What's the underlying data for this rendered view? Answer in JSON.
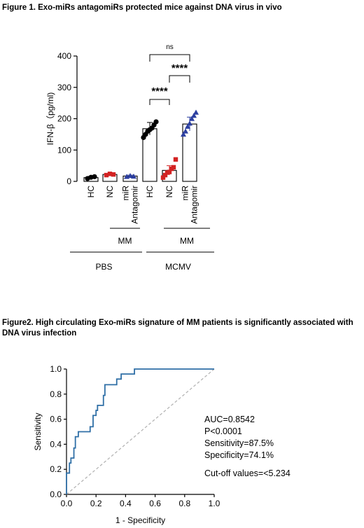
{
  "figure1": {
    "title": "Figure 1. Exo-miRs antagomiRs protected mice against DNA virus in vivo",
    "chart_data": {
      "type": "bar",
      "ylabel": "IFN-β（pg/ml)",
      "ylim": [
        0,
        400
      ],
      "yticks": [
        0,
        100,
        200,
        300,
        400
      ],
      "categories": [
        "HC",
        "NC",
        "miR Antagomir",
        "HC",
        "NC",
        "miR Antagomir"
      ],
      "category_lines": [
        [
          "HC"
        ],
        [
          "NC"
        ],
        [
          "miR",
          "Antagomir"
        ],
        [
          "HC"
        ],
        [
          "NC"
        ],
        [
          "miR",
          "Antagomir"
        ]
      ],
      "values": [
        12,
        22,
        17,
        168,
        35,
        183
      ],
      "errors": [
        4,
        3,
        3,
        20,
        15,
        22
      ],
      "colors": [
        "#000000",
        "#d32222",
        "#2c3fa0",
        "#000000",
        "#d32222",
        "#2c3fa0"
      ],
      "markers": [
        "circle",
        "square",
        "triangle",
        "circle",
        "square",
        "triangle"
      ],
      "points": [
        [
          9,
          13,
          15
        ],
        [
          20,
          24,
          22
        ],
        [
          15,
          18,
          16
        ],
        [
          140,
          150,
          160,
          165,
          170,
          180,
          190
        ],
        [
          12,
          20,
          28,
          30,
          40,
          45,
          70
        ],
        [
          150,
          160,
          175,
          185,
          200,
          210,
          220
        ]
      ],
      "group_labels": [
        {
          "label": "MM",
          "span": [
            1,
            2
          ]
        },
        {
          "label": "MM",
          "span": [
            4,
            5
          ]
        },
        {
          "label": "PBS",
          "span": [
            0,
            2
          ]
        },
        {
          "label": "MCMV",
          "span": [
            3,
            5
          ]
        }
      ],
      "comparisons": [
        {
          "from": 3,
          "to": 4,
          "label": "****"
        },
        {
          "from": 4,
          "to": 5,
          "label": "****"
        },
        {
          "from": 3,
          "to": 5,
          "label": "ns"
        }
      ]
    }
  },
  "figure2": {
    "title": "Figure2. High circulating Exo-miRs signature of MM patients is significantly associated with DNA virus infection",
    "chart_data": {
      "type": "line",
      "xlabel": "1 - Specificity",
      "ylabel": "Sensitivity",
      "xlim": [
        0,
        1
      ],
      "ylim": [
        0,
        1
      ],
      "ticks": [
        0.0,
        0.2,
        0.4,
        0.6,
        0.8,
        1.0
      ],
      "tick_labels": [
        "0.0",
        "0.2",
        "0.4",
        "0.6",
        "0.8",
        "1.0"
      ],
      "roc_color": "#2f6fa6",
      "reference_color": "#b0b0b0",
      "roc_curve": [
        [
          0,
          0
        ],
        [
          0,
          0.17
        ],
        [
          0.02,
          0.17
        ],
        [
          0.02,
          0.25
        ],
        [
          0.03,
          0.25
        ],
        [
          0.03,
          0.29
        ],
        [
          0.05,
          0.29
        ],
        [
          0.05,
          0.37
        ],
        [
          0.06,
          0.37
        ],
        [
          0.06,
          0.46
        ],
        [
          0.08,
          0.46
        ],
        [
          0.08,
          0.5
        ],
        [
          0.16,
          0.5
        ],
        [
          0.16,
          0.54
        ],
        [
          0.18,
          0.54
        ],
        [
          0.18,
          0.63
        ],
        [
          0.2,
          0.63
        ],
        [
          0.2,
          0.67
        ],
        [
          0.21,
          0.67
        ],
        [
          0.21,
          0.71
        ],
        [
          0.25,
          0.71
        ],
        [
          0.25,
          0.79
        ],
        [
          0.26,
          0.79
        ],
        [
          0.26,
          0.875
        ],
        [
          0.34,
          0.875
        ],
        [
          0.34,
          0.92
        ],
        [
          0.37,
          0.92
        ],
        [
          0.37,
          0.96
        ],
        [
          0.46,
          0.96
        ],
        [
          0.46,
          1.0
        ],
        [
          1.0,
          1.0
        ]
      ],
      "stats": [
        "AUC=0.8542",
        "P<0.0001",
        "Sensitivity=87.5%",
        "Specificity=74.1%",
        "Cut-off values=<5.234"
      ]
    }
  }
}
